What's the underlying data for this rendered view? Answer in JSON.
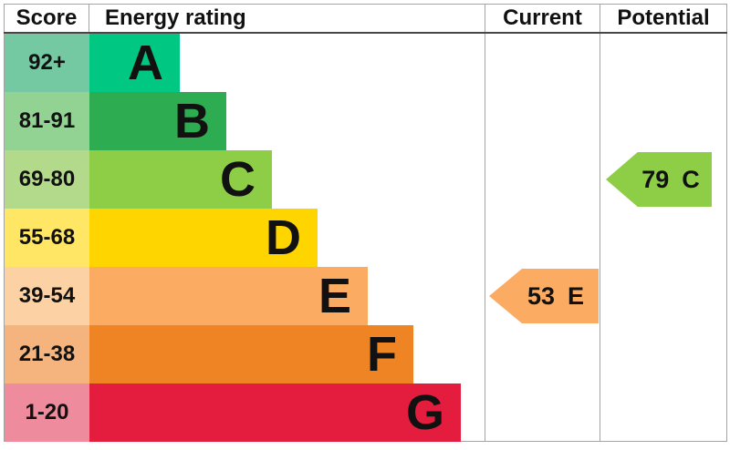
{
  "header": {
    "score": "Score",
    "energy_rating": "Energy rating",
    "current": "Current",
    "potential": "Potential"
  },
  "chart_data": {
    "type": "bar",
    "description": "EPC energy efficiency rating bands",
    "categories": [
      "A",
      "B",
      "C",
      "D",
      "E",
      "F",
      "G"
    ],
    "bands": [
      {
        "letter": "A",
        "score_range": "92+",
        "bar_color": "#00C781",
        "score_cell_color": "#75C9A2"
      },
      {
        "letter": "B",
        "score_range": "81-91",
        "bar_color": "#2EAC52",
        "score_cell_color": "#92D393"
      },
      {
        "letter": "C",
        "score_range": "69-80",
        "bar_color": "#8DCE46",
        "score_cell_color": "#B3D98A"
      },
      {
        "letter": "D",
        "score_range": "55-68",
        "bar_color": "#FFD500",
        "score_cell_color": "#FFE664"
      },
      {
        "letter": "E",
        "score_range": "39-54",
        "bar_color": "#FBAB62",
        "score_cell_color": "#FCD2A5"
      },
      {
        "letter": "F",
        "score_range": "21-38",
        "bar_color": "#EE8424",
        "score_cell_color": "#F5B47D"
      },
      {
        "letter": "G",
        "score_range": "1-20",
        "bar_color": "#E41C3D",
        "score_cell_color": "#EE8B9C"
      }
    ],
    "current": {
      "value": 53,
      "band": "E",
      "arrow_color": "#FBAB62"
    },
    "potential": {
      "value": 79,
      "band": "C",
      "arrow_color": "#8DCE46"
    }
  }
}
